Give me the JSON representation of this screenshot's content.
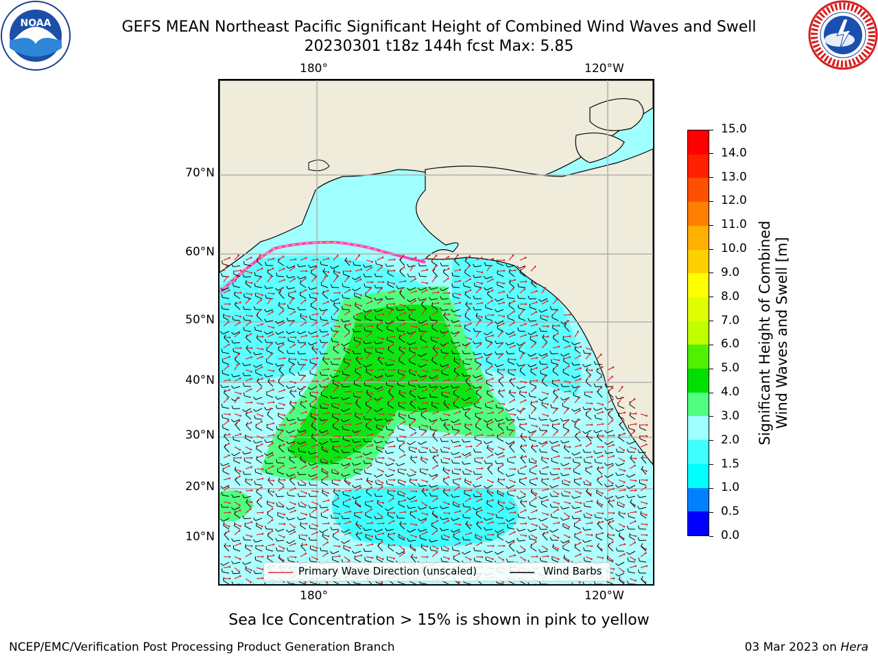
{
  "title_line1": "GEFS MEAN Northeast Pacific Significant Height of Combined Wind Waves and Swell",
  "title_line2": "20230301 t18z 144h fcst   Max: 5.85",
  "logos": {
    "left": "noaa-logo",
    "right": "nws-logo"
  },
  "lon_labels": [
    "180°",
    "120°W"
  ],
  "lat_labels": [
    "70°N",
    "60°N",
    "50°N",
    "40°N",
    "30°N",
    "20°N",
    "10°N"
  ],
  "colorbar": {
    "title_line1": "Significant Height of Combined",
    "title_line2": "Wind Waves and Swell [m]",
    "tick_labels": [
      "0.0",
      "0.5",
      "1.0",
      "1.5",
      "2.0",
      "3.0",
      "4.0",
      "5.0",
      "6.0",
      "7.0",
      "8.0",
      "9.0",
      "10.0",
      "11.0",
      "12.0",
      "13.0",
      "14.0",
      "15.0"
    ],
    "colors": [
      "#0000ff",
      "#0080ff",
      "#00ffff",
      "#40ffff",
      "#a0ffff",
      "#50ff80",
      "#00e000",
      "#50f000",
      "#c0ff00",
      "#e0ff00",
      "#ffff00",
      "#ffd000",
      "#ffb000",
      "#ff8000",
      "#ff5000",
      "#ff2000",
      "#ff0000"
    ]
  },
  "legend": {
    "wave_direction_label": "Primary Wave Direction (unscaled)",
    "wind_barbs_label": "Wind Barbs",
    "wave_direction_color": "#e03030",
    "wind_barbs_color": "#000000"
  },
  "caption": "Sea Ice Concentration > 15% is shown in pink to yellow",
  "footer_left": "NCEP/EMC/Verification Post Processing Product Generation Branch",
  "footer_right_date": "03 Mar 2023 on ",
  "footer_right_host": "Hera",
  "map_colors": {
    "land": "#efecdc",
    "grid": "#b0b0b0"
  }
}
